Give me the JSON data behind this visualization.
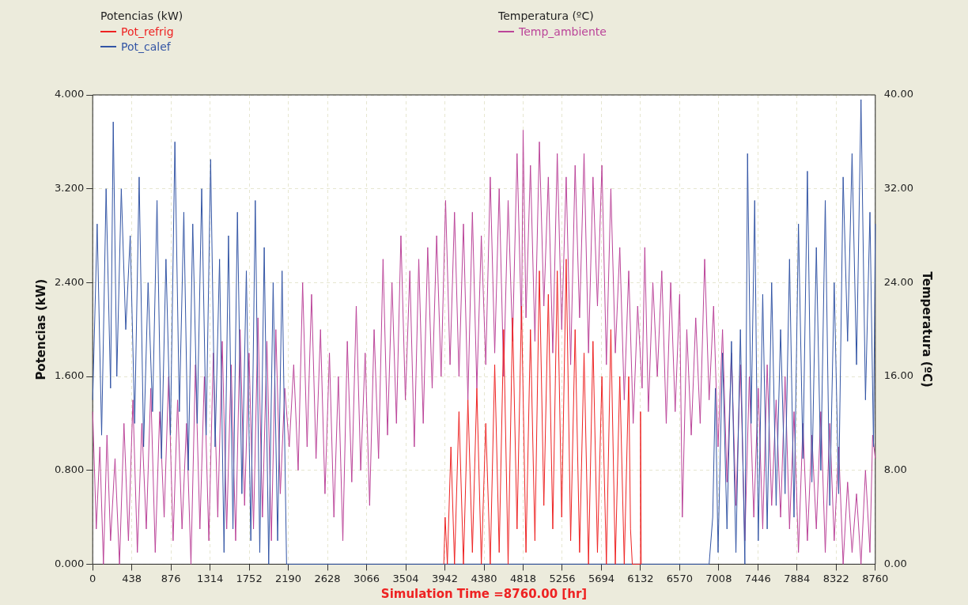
{
  "chart_data": {
    "type": "line",
    "xlabel": "Simulation Time =8760.00 [hr]",
    "ylabel": "Potencias (kW)",
    "y2label": "Temperatura (ºC)",
    "legend_title": "Potencias (kW)",
    "annotations": [
      "Temperatura (ºC)"
    ],
    "xlim": [
      0,
      8760
    ],
    "xticks": [
      0,
      438,
      876,
      1314,
      1752,
      2190,
      2628,
      3066,
      3504,
      3942,
      4380,
      4818,
      5256,
      5694,
      6132,
      6570,
      7008,
      7446,
      7884,
      8322,
      8760
    ],
    "ylim": [
      0,
      4
    ],
    "yticks": [
      {
        "value": 0,
        "label": "0.000"
      },
      {
        "value": 0.8,
        "label": "0.800"
      },
      {
        "value": 1.6,
        "label": "1.600"
      },
      {
        "value": 2.4,
        "label": "2.400"
      },
      {
        "value": 3.2,
        "label": "3.200"
      },
      {
        "value": 4,
        "label": "4.000"
      }
    ],
    "y2lim": [
      0,
      40
    ],
    "y2ticks": [
      {
        "value": 0,
        "label": "0.00"
      },
      {
        "value": 8,
        "label": "8.00"
      },
      {
        "value": 16,
        "label": "16.00"
      },
      {
        "value": 24,
        "label": "24.00"
      },
      {
        "value": 32,
        "label": "32.00"
      },
      {
        "value": 40,
        "label": "40.00"
      }
    ],
    "grid": true,
    "legend": "top",
    "marker": "none",
    "line_style": "solid",
    "series": [
      {
        "name": "Pot_refrig",
        "color": "#ee2222",
        "x": [
          3930,
          3945,
          3970,
          4010,
          4050,
          4100,
          4150,
          4200,
          4250,
          4300,
          4350,
          4400,
          4450,
          4500,
          4550,
          4600,
          4650,
          4700,
          4750,
          4800,
          4850,
          4900,
          4950,
          5000,
          5050,
          5100,
          5150,
          5200,
          5250,
          5300,
          5350,
          5400,
          5450,
          5500,
          5550,
          5600,
          5650,
          5700,
          5750,
          5800,
          5850,
          5900,
          5950,
          6000,
          6020,
          6040,
          6125,
          6132,
          6140
        ],
        "values": [
          0,
          0.4,
          0,
          1.0,
          0,
          1.3,
          0,
          1.4,
          0.1,
          1.5,
          0,
          1.2,
          0,
          1.7,
          0.1,
          2.0,
          0,
          2.1,
          0.3,
          2.2,
          0.1,
          2.0,
          0.2,
          2.5,
          0.5,
          2.3,
          0.3,
          2.5,
          0.4,
          2.6,
          0.2,
          2.0,
          0.1,
          1.8,
          0,
          1.9,
          0.1,
          1.6,
          0,
          2.0,
          0,
          1.6,
          0,
          1.6,
          0.3,
          0,
          0,
          1.3,
          0
        ]
      },
      {
        "name": "Pot_calef",
        "color": "#3355a5",
        "x": [
          0,
          50,
          100,
          150,
          200,
          230,
          270,
          320,
          370,
          420,
          470,
          520,
          570,
          620,
          670,
          720,
          770,
          820,
          870,
          920,
          970,
          1020,
          1070,
          1120,
          1170,
          1220,
          1270,
          1320,
          1370,
          1420,
          1470,
          1520,
          1570,
          1620,
          1670,
          1720,
          1770,
          1820,
          1870,
          1920,
          1970,
          2020,
          2070,
          2120,
          2170,
          2200,
          6900,
          6940,
          6970,
          7000,
          7050,
          7100,
          7150,
          7200,
          7250,
          7300,
          7330,
          7370,
          7410,
          7450,
          7500,
          7550,
          7600,
          7650,
          7700,
          7750,
          7800,
          7850,
          7900,
          7950,
          8000,
          8050,
          8100,
          8150,
          8200,
          8250,
          8300,
          8350,
          8400,
          8450,
          8500,
          8550,
          8600,
          8650,
          8700,
          8740,
          8760
        ],
        "values": [
          1.4,
          2.9,
          1.1,
          3.2,
          1.5,
          3.77,
          1.6,
          3.2,
          2.0,
          2.8,
          1.2,
          3.3,
          1.0,
          2.4,
          1.3,
          3.1,
          0.9,
          2.6,
          1.1,
          3.6,
          1.3,
          3.0,
          0.8,
          2.9,
          1.2,
          3.2,
          1.1,
          3.45,
          1.0,
          2.6,
          0.1,
          2.8,
          0.3,
          3.0,
          0.6,
          2.5,
          0.2,
          3.1,
          0.1,
          2.7,
          0,
          2.4,
          0.2,
          2.5,
          0,
          0,
          0,
          0.4,
          1.5,
          0.1,
          1.8,
          0.3,
          1.9,
          0.1,
          2.0,
          0,
          3.5,
          1.2,
          3.1,
          0.2,
          2.3,
          0.3,
          2.4,
          0.5,
          2.0,
          0.6,
          2.6,
          0.4,
          2.9,
          0.9,
          3.35,
          0.7,
          2.7,
          0.8,
          3.1,
          0.5,
          2.4,
          0.6,
          3.3,
          1.9,
          3.5,
          1.7,
          3.96,
          1.4,
          3.0,
          1.0,
          2.9
        ]
      },
      {
        "name": "Temp_ambiente",
        "color": "#bb4499",
        "axis": "y2",
        "x": [
          0,
          40,
          80,
          120,
          160,
          200,
          250,
          300,
          350,
          400,
          450,
          500,
          550,
          600,
          650,
          700,
          750,
          800,
          850,
          900,
          950,
          1000,
          1050,
          1100,
          1150,
          1200,
          1250,
          1300,
          1350,
          1400,
          1450,
          1500,
          1550,
          1600,
          1650,
          1700,
          1750,
          1800,
          1850,
          1900,
          1950,
          2000,
          2050,
          2100,
          2150,
          2200,
          2250,
          2300,
          2350,
          2400,
          2450,
          2500,
          2550,
          2600,
          2650,
          2700,
          2750,
          2800,
          2850,
          2900,
          2950,
          3000,
          3050,
          3100,
          3150,
          3200,
          3250,
          3300,
          3350,
          3400,
          3450,
          3500,
          3550,
          3600,
          3650,
          3700,
          3750,
          3800,
          3850,
          3900,
          3950,
          4000,
          4050,
          4100,
          4150,
          4200,
          4250,
          4300,
          4350,
          4400,
          4450,
          4500,
          4550,
          4600,
          4650,
          4700,
          4750,
          4800,
          4818,
          4850,
          4900,
          4950,
          5000,
          5050,
          5100,
          5150,
          5200,
          5250,
          5300,
          5350,
          5400,
          5450,
          5500,
          5550,
          5600,
          5650,
          5700,
          5750,
          5800,
          5850,
          5900,
          5950,
          6000,
          6050,
          6100,
          6150,
          6180,
          6220,
          6270,
          6320,
          6370,
          6420,
          6470,
          6520,
          6570,
          6600,
          6650,
          6700,
          6750,
          6800,
          6850,
          6900,
          6950,
          7000,
          7050,
          7100,
          7150,
          7200,
          7250,
          7300,
          7350,
          7400,
          7450,
          7500,
          7550,
          7600,
          7650,
          7700,
          7750,
          7800,
          7850,
          7900,
          7950,
          8000,
          8050,
          8100,
          8150,
          8200,
          8250,
          8300,
          8350,
          8400,
          8450,
          8500,
          8550,
          8600,
          8650,
          8700,
          8730,
          8760
        ],
        "values": [
          13,
          3,
          10,
          0,
          11,
          2,
          9,
          0,
          12,
          2,
          14,
          1,
          12,
          3,
          15,
          1,
          13,
          4,
          16,
          2,
          14,
          3,
          12,
          0,
          17,
          3,
          16,
          2,
          18,
          4,
          19,
          3,
          17,
          2,
          20,
          5,
          18,
          3,
          21,
          4,
          19,
          2,
          20,
          6,
          15,
          10,
          17,
          8,
          24,
          10,
          23,
          9,
          20,
          6,
          18,
          4,
          16,
          2,
          19,
          7,
          22,
          8,
          18,
          5,
          20,
          9,
          26,
          11,
          24,
          12,
          28,
          14,
          25,
          10,
          26,
          12,
          27,
          15,
          28,
          16,
          31,
          17,
          30,
          16,
          29,
          14,
          30,
          15,
          28,
          17,
          33,
          18,
          32,
          16,
          31,
          19,
          35,
          20,
          37,
          21,
          34,
          19,
          36,
          22,
          33,
          18,
          35,
          20,
          33,
          17,
          34,
          21,
          35,
          18,
          33,
          22,
          34,
          17,
          32,
          18,
          27,
          14,
          25,
          12,
          22,
          15,
          27,
          13,
          24,
          16,
          25,
          12,
          24,
          13,
          23,
          4,
          20,
          11,
          21,
          12,
          26,
          14,
          22,
          10,
          20,
          7,
          18,
          5,
          17,
          2,
          16,
          4,
          15,
          3,
          17,
          5,
          14,
          4,
          16,
          3,
          13,
          1,
          12,
          2,
          11,
          3,
          13,
          1,
          12,
          2,
          10,
          0,
          7,
          1,
          6,
          0,
          8,
          1,
          11,
          9
        ]
      }
    ]
  }
}
